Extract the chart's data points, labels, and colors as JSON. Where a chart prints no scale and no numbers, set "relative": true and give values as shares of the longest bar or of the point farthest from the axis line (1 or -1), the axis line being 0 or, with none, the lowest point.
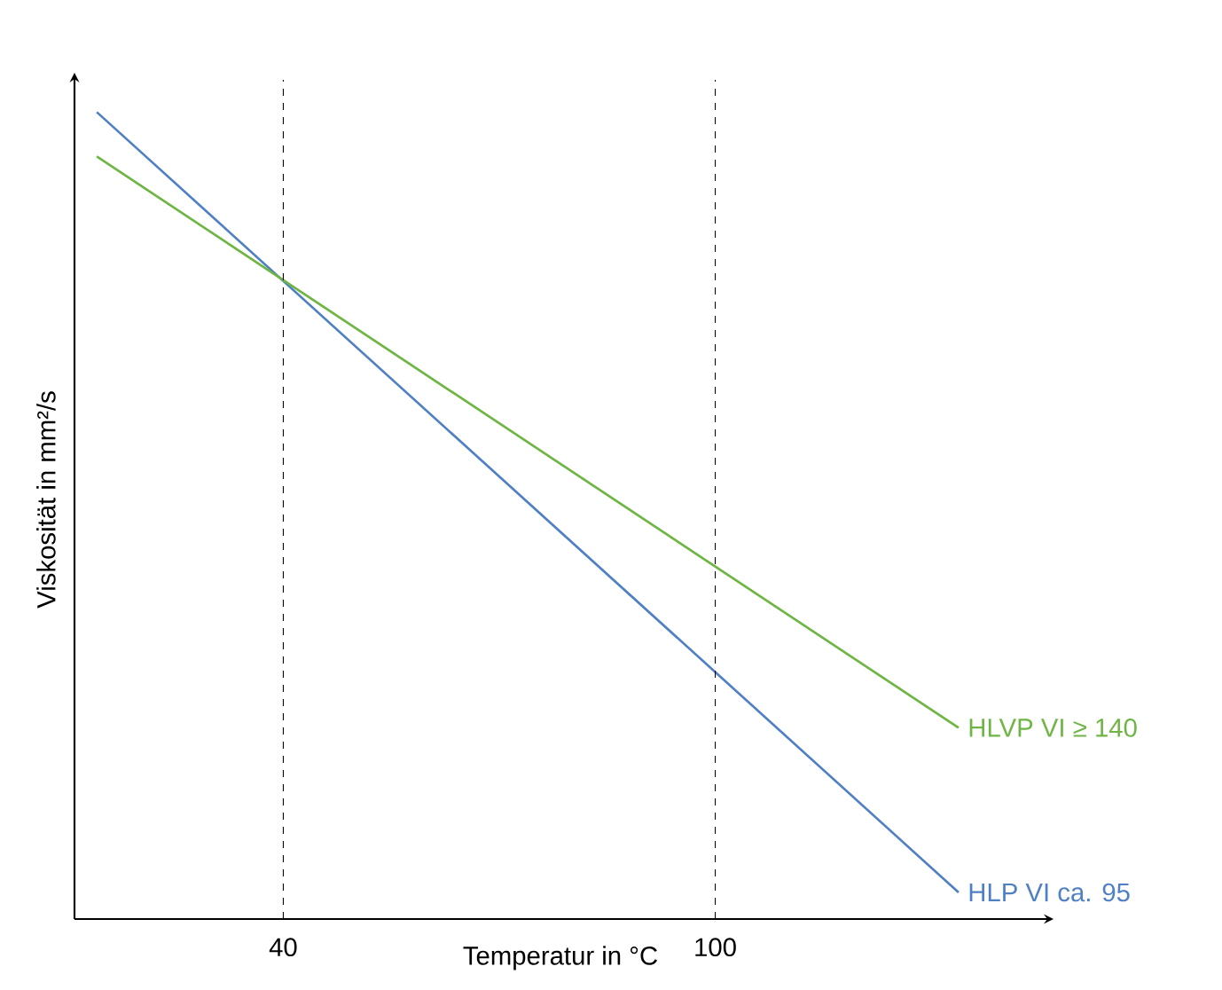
{
  "chart_data": {
    "type": "line",
    "xlabel": "Temperatur in °C",
    "ylabel": "Viskosität in mm²/s",
    "relative": true,
    "xlim": [
      11,
      146
    ],
    "xticks": [
      40,
      100
    ],
    "x": [
      14.1,
      133.8
    ],
    "series": [
      {
        "name": "HLP VI ca. 95",
        "color": "#4f7fc4",
        "values": [
          1,
          0.033
        ]
      },
      {
        "name": "HLVP VI ≥ 140",
        "color": "#6fb544",
        "values": [
          0.945,
          0.237
        ]
      }
    ],
    "ref_lines": [
      {
        "axis": "x",
        "value": 40,
        "color": "#000000",
        "line_style": "dashed"
      },
      {
        "axis": "x",
        "value": 100,
        "color": "#000000",
        "line_style": "dashed"
      }
    ],
    "legend": false,
    "grid": false,
    "marker": "none",
    "line_style": "solid"
  }
}
